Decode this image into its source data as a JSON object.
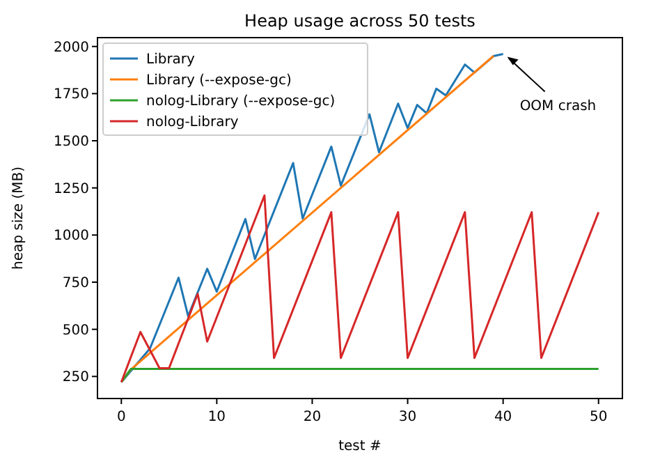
{
  "chart_data": {
    "type": "line",
    "title": "Heap usage across 50 tests",
    "xlabel": "test #",
    "ylabel": "heap size (MB)",
    "xlim": [
      -2.5,
      52.5
    ],
    "ylim": [
      133,
      2047
    ],
    "xticks": [
      0,
      10,
      20,
      30,
      40,
      50
    ],
    "yticks": [
      250,
      500,
      750,
      1000,
      1250,
      1500,
      1750,
      2000
    ],
    "grid": false,
    "legend": "top left",
    "marker": "none",
    "line_style": "solid",
    "annotations": [
      {
        "text": "OOM crash",
        "x": 40,
        "y": 1960
      }
    ],
    "series": [
      {
        "name": "Library",
        "color": "#1f77b4",
        "x": [
          0,
          3,
          6,
          7,
          9,
          10,
          13,
          14,
          18,
          19,
          22,
          23,
          26,
          27,
          29,
          30,
          31,
          32,
          33,
          34,
          36,
          37,
          39,
          40
        ],
        "values": [
          220,
          398,
          774,
          570,
          821,
          700,
          1085,
          873,
          1382,
          1087,
          1469,
          1262,
          1640,
          1439,
          1697,
          1567,
          1690,
          1646,
          1776,
          1740,
          1904,
          1862,
          1949,
          1960
        ]
      },
      {
        "name": "Library (--expose-gc)",
        "color": "#ff7f0e",
        "x": [
          0,
          1,
          39
        ],
        "values": [
          220,
          287,
          1950
        ]
      },
      {
        "name": "nolog-Library (--expose-gc)",
        "color": "#2ca02c",
        "x": [
          0,
          1,
          50
        ],
        "values": [
          220,
          290,
          290
        ]
      },
      {
        "name": "nolog-Library",
        "color": "#d62728",
        "x": [
          0,
          2,
          4,
          5,
          8,
          9,
          15,
          16,
          22,
          23,
          29,
          30,
          36,
          37,
          43,
          44,
          50
        ],
        "values": [
          220,
          486,
          294,
          294,
          688,
          435,
          1210,
          348,
          1121,
          348,
          1121,
          348,
          1121,
          348,
          1121,
          348,
          1121
        ]
      }
    ]
  }
}
